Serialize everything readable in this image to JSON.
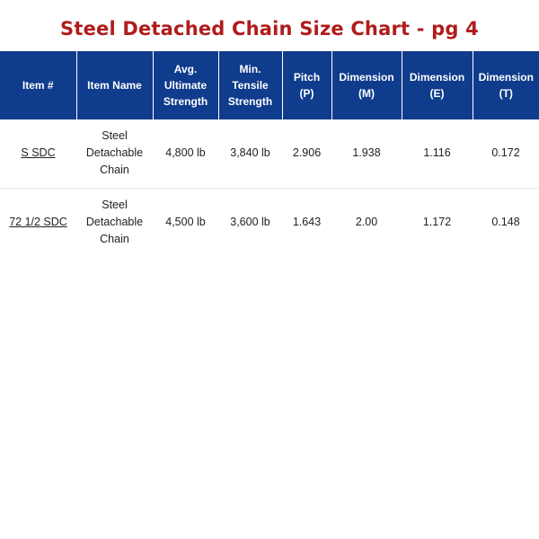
{
  "title": "Steel Detached Chain Size Chart - pg 4",
  "colors": {
    "title": "#b01c1c",
    "header_background": "#0f3c8c",
    "header_text": "#ffffff"
  },
  "table": {
    "headers": [
      [
        "Item #"
      ],
      [
        "Item Name"
      ],
      [
        "Avg.",
        "Ultimate",
        "Strength"
      ],
      [
        "Min.",
        "Tensile",
        "Strength"
      ],
      [
        "Pitch",
        "(P)"
      ],
      [
        "Dimension",
        "(M)"
      ],
      [
        "Dimension",
        "(E)"
      ],
      [
        "Dimension",
        "(T)"
      ]
    ],
    "rows": [
      {
        "item": "S SDC",
        "name_lines": [
          "Steel",
          "Detachable",
          "Chain"
        ],
        "avg_ultimate_strength": "4,800 lb",
        "min_tensile_strength": "3,840 lb",
        "pitch": "2.906",
        "dimension_m": "1.938",
        "dimension_e": "1.116",
        "dimension_t": "0.172"
      },
      {
        "item": "72 1/2 SDC",
        "name_lines": [
          "Steel",
          "Detachable",
          "Chain"
        ],
        "avg_ultimate_strength": "4,500 lb",
        "min_tensile_strength": "3,600 lb",
        "pitch": "1.643",
        "dimension_m": "2.00",
        "dimension_e": "1.172",
        "dimension_t": "0.148"
      }
    ]
  }
}
